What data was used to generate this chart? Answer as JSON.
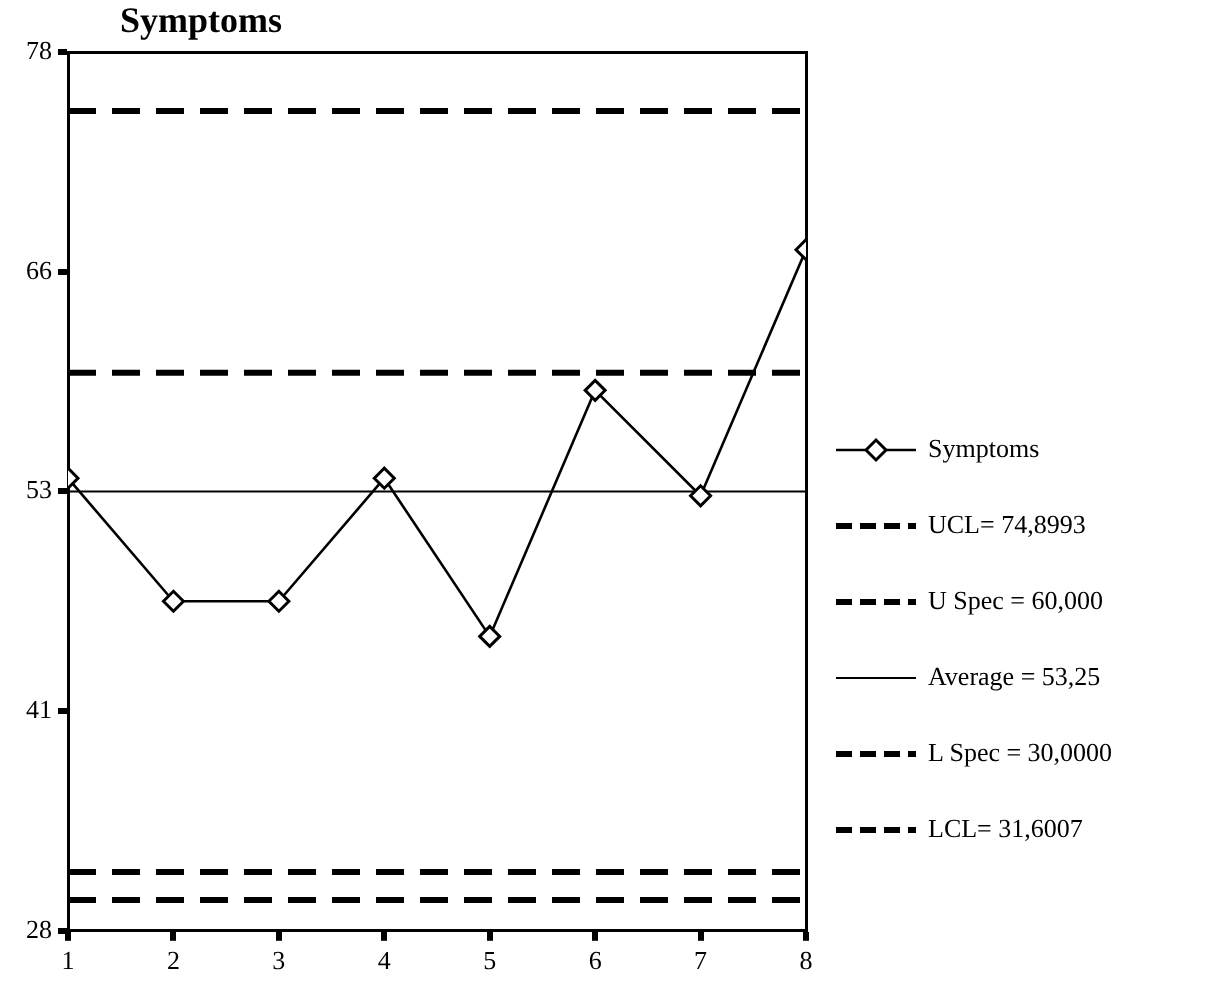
{
  "chart_data": {
    "type": "line",
    "title": "Symptoms",
    "x": [
      1,
      2,
      3,
      4,
      5,
      6,
      7,
      8
    ],
    "series": [
      {
        "name": "Symptoms",
        "color": "#000000",
        "values": [
          54,
          47,
          47,
          54,
          45,
          59,
          53,
          67
        ]
      }
    ],
    "xlim": [
      1,
      8
    ],
    "xticks": [
      1,
      2,
      3,
      4,
      5,
      6,
      7,
      8
    ],
    "ylim": [
      28.25,
      78.25
    ],
    "yticks": [
      {
        "value": 28.25,
        "label": "28"
      },
      {
        "value": 40.75,
        "label": "41"
      },
      {
        "value": 53.25,
        "label": "53"
      },
      {
        "value": 65.75,
        "label": "66"
      },
      {
        "value": 78.25,
        "label": "78"
      }
    ],
    "ref_lines": [
      {
        "axis": "y",
        "value": 74.8993,
        "label": "UCL= 74,8993",
        "line_style": "dashed",
        "color": "#000000"
      },
      {
        "axis": "y",
        "value": 60,
        "label": "U Spec = 60,000",
        "line_style": "dashed",
        "color": "#000000"
      },
      {
        "axis": "y",
        "value": 53.25,
        "label": "Average = 53,25",
        "line_style": "solid",
        "color": "#000000"
      },
      {
        "axis": "y",
        "value": 30,
        "label": "L Spec = 30,0000",
        "line_style": "dashed",
        "color": "#000000"
      },
      {
        "axis": "y",
        "value": 31.6007,
        "label": "LCL= 31,6007",
        "line_style": "dashed",
        "color": "#000000"
      }
    ],
    "grid": false,
    "legend": "right",
    "marker": "diamond",
    "line_style": "solid"
  }
}
